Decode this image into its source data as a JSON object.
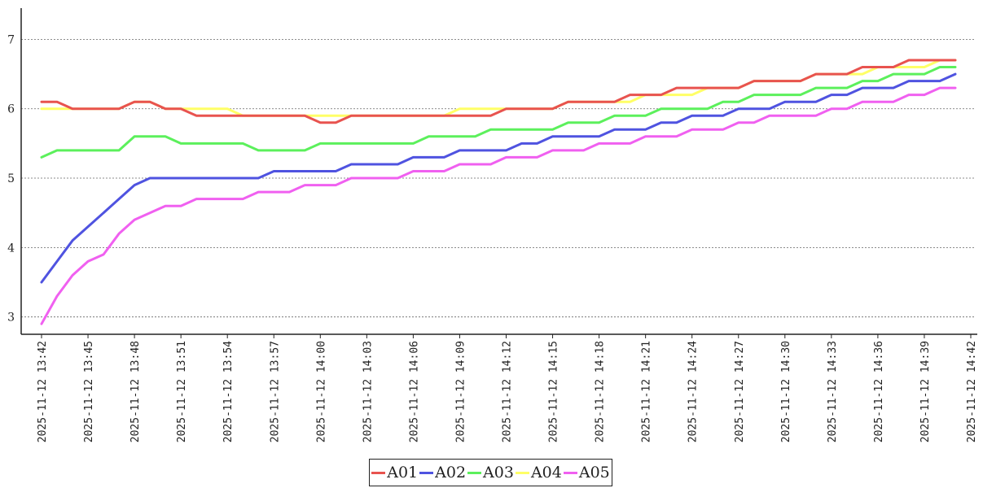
{
  "chart_data": {
    "type": "line",
    "title": "",
    "xlabel": "",
    "ylabel": "",
    "ylim": [
      2.75,
      7.45
    ],
    "yticks": [
      3,
      4,
      5,
      6,
      7
    ],
    "grid": "horizontal dotted",
    "legend_position": "bottom-center",
    "x_tick_labels": [
      "2025-11-12 13:42",
      "2025-11-12 13:45",
      "2025-11-12 13:48",
      "2025-11-12 13:51",
      "2025-11-12 13:54",
      "2025-11-12 13:57",
      "2025-11-12 14:00",
      "2025-11-12 14:03",
      "2025-11-12 14:06",
      "2025-11-12 14:09",
      "2025-11-12 14:12",
      "2025-11-12 14:15",
      "2025-11-12 14:18",
      "2025-11-12 14:21",
      "2025-11-12 14:24",
      "2025-11-12 14:27",
      "2025-11-12 14:30",
      "2025-11-12 14:33",
      "2025-11-12 14:36",
      "2025-11-12 14:39",
      "2025-11-12 14:42"
    ],
    "x": [
      "2025-11-12 13:42",
      "2025-11-12 13:43",
      "2025-11-12 13:44",
      "2025-11-12 13:45",
      "2025-11-12 13:46",
      "2025-11-12 13:47",
      "2025-11-12 13:48",
      "2025-11-12 13:49",
      "2025-11-12 13:50",
      "2025-11-12 13:51",
      "2025-11-12 13:52",
      "2025-11-12 13:53",
      "2025-11-12 13:54",
      "2025-11-12 13:55",
      "2025-11-12 13:56",
      "2025-11-12 13:57",
      "2025-11-12 13:58",
      "2025-11-12 13:59",
      "2025-11-12 14:00",
      "2025-11-12 14:01",
      "2025-11-12 14:02",
      "2025-11-12 14:03",
      "2025-11-12 14:04",
      "2025-11-12 14:05",
      "2025-11-12 14:06",
      "2025-11-12 14:07",
      "2025-11-12 14:08",
      "2025-11-12 14:09",
      "2025-11-12 14:10",
      "2025-11-12 14:11",
      "2025-11-12 14:12",
      "2025-11-12 14:13",
      "2025-11-12 14:14",
      "2025-11-12 14:15",
      "2025-11-12 14:16",
      "2025-11-12 14:17",
      "2025-11-12 14:18",
      "2025-11-12 14:19",
      "2025-11-12 14:20",
      "2025-11-12 14:21",
      "2025-11-12 14:22",
      "2025-11-12 14:23",
      "2025-11-12 14:24",
      "2025-11-12 14:25",
      "2025-11-12 14:26",
      "2025-11-12 14:27",
      "2025-11-12 14:28",
      "2025-11-12 14:29",
      "2025-11-12 14:30",
      "2025-11-12 14:31",
      "2025-11-12 14:32",
      "2025-11-12 14:33",
      "2025-11-12 14:34",
      "2025-11-12 14:35",
      "2025-11-12 14:36",
      "2025-11-12 14:37",
      "2025-11-12 14:38",
      "2025-11-12 14:39",
      "2025-11-12 14:40",
      "2025-11-12 14:41"
    ],
    "series": [
      {
        "name": "A01",
        "color": "#e8534f",
        "values": [
          6.1,
          6.1,
          6.0,
          6.0,
          6.0,
          6.0,
          6.1,
          6.1,
          6.0,
          6.0,
          5.9,
          5.9,
          5.9,
          5.9,
          5.9,
          5.9,
          5.9,
          5.9,
          5.8,
          5.8,
          5.9,
          5.9,
          5.9,
          5.9,
          5.9,
          5.9,
          5.9,
          5.9,
          5.9,
          5.9,
          6.0,
          6.0,
          6.0,
          6.0,
          6.1,
          6.1,
          6.1,
          6.1,
          6.2,
          6.2,
          6.2,
          6.3,
          6.3,
          6.3,
          6.3,
          6.3,
          6.4,
          6.4,
          6.4,
          6.4,
          6.5,
          6.5,
          6.5,
          6.6,
          6.6,
          6.6,
          6.7,
          6.7,
          6.7,
          6.7
        ]
      },
      {
        "name": "A02",
        "color": "#4f53e0",
        "values": [
          3.5,
          3.8,
          4.1,
          4.3,
          4.5,
          4.7,
          4.9,
          5.0,
          5.0,
          5.0,
          5.0,
          5.0,
          5.0,
          5.0,
          5.0,
          5.1,
          5.1,
          5.1,
          5.1,
          5.1,
          5.2,
          5.2,
          5.2,
          5.2,
          5.3,
          5.3,
          5.3,
          5.4,
          5.4,
          5.4,
          5.4,
          5.5,
          5.5,
          5.6,
          5.6,
          5.6,
          5.6,
          5.7,
          5.7,
          5.7,
          5.8,
          5.8,
          5.9,
          5.9,
          5.9,
          6.0,
          6.0,
          6.0,
          6.1,
          6.1,
          6.1,
          6.2,
          6.2,
          6.3,
          6.3,
          6.3,
          6.4,
          6.4,
          6.4,
          6.5
        ]
      },
      {
        "name": "A03",
        "color": "#5cf05c",
        "values": [
          5.3,
          5.4,
          5.4,
          5.4,
          5.4,
          5.4,
          5.6,
          5.6,
          5.6,
          5.5,
          5.5,
          5.5,
          5.5,
          5.5,
          5.4,
          5.4,
          5.4,
          5.4,
          5.5,
          5.5,
          5.5,
          5.5,
          5.5,
          5.5,
          5.5,
          5.6,
          5.6,
          5.6,
          5.6,
          5.7,
          5.7,
          5.7,
          5.7,
          5.7,
          5.8,
          5.8,
          5.8,
          5.9,
          5.9,
          5.9,
          6.0,
          6.0,
          6.0,
          6.0,
          6.1,
          6.1,
          6.2,
          6.2,
          6.2,
          6.2,
          6.3,
          6.3,
          6.3,
          6.4,
          6.4,
          6.5,
          6.5,
          6.5,
          6.6,
          6.6
        ]
      },
      {
        "name": "A04",
        "color": "#ffff66",
        "values": [
          6.0,
          6.0,
          6.0,
          6.0,
          6.0,
          6.0,
          6.1,
          6.1,
          6.0,
          6.0,
          6.0,
          6.0,
          6.0,
          5.9,
          5.9,
          5.9,
          5.9,
          5.9,
          5.9,
          5.9,
          5.9,
          5.9,
          5.9,
          5.9,
          5.9,
          5.9,
          5.9,
          6.0,
          6.0,
          6.0,
          6.0,
          6.0,
          6.0,
          6.0,
          6.1,
          6.1,
          6.1,
          6.1,
          6.1,
          6.2,
          6.2,
          6.2,
          6.2,
          6.3,
          6.3,
          6.3,
          6.4,
          6.4,
          6.4,
          6.4,
          6.5,
          6.5,
          6.5,
          6.5,
          6.6,
          6.6,
          6.6,
          6.6,
          6.7,
          6.7
        ]
      },
      {
        "name": "A05",
        "color": "#f060f0",
        "values": [
          2.9,
          3.3,
          3.6,
          3.8,
          3.9,
          4.2,
          4.4,
          4.5,
          4.6,
          4.6,
          4.7,
          4.7,
          4.7,
          4.7,
          4.8,
          4.8,
          4.8,
          4.9,
          4.9,
          4.9,
          5.0,
          5.0,
          5.0,
          5.0,
          5.1,
          5.1,
          5.1,
          5.2,
          5.2,
          5.2,
          5.3,
          5.3,
          5.3,
          5.4,
          5.4,
          5.4,
          5.5,
          5.5,
          5.5,
          5.6,
          5.6,
          5.6,
          5.7,
          5.7,
          5.7,
          5.8,
          5.8,
          5.9,
          5.9,
          5.9,
          5.9,
          6.0,
          6.0,
          6.1,
          6.1,
          6.1,
          6.2,
          6.2,
          6.3,
          6.3
        ]
      }
    ]
  }
}
